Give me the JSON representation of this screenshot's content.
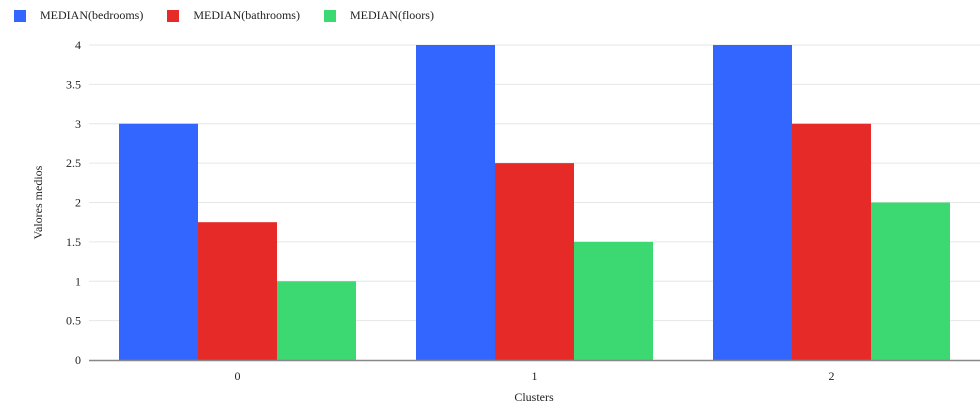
{
  "chart_data": {
    "type": "bar",
    "categories": [
      "0",
      "1",
      "2"
    ],
    "series": [
      {
        "name": "MEDIAN(bedrooms)",
        "values": [
          3,
          4,
          4
        ],
        "color": "#3366ff"
      },
      {
        "name": "MEDIAN(bathrooms)",
        "values": [
          1.75,
          2.5,
          3
        ],
        "color": "#e62a27"
      },
      {
        "name": "MEDIAN(floors)",
        "values": [
          1,
          1.5,
          2
        ],
        "color": "#3cd973"
      }
    ],
    "title": "",
    "xlabel": "Clusters",
    "ylabel": "Valores medios",
    "ylim": [
      0,
      4
    ],
    "yticks": [
      "0",
      "0.5",
      "1",
      "1.5",
      "2",
      "2.5",
      "3",
      "3.5",
      "4"
    ],
    "grid": true,
    "legend_position": "top-left"
  }
}
